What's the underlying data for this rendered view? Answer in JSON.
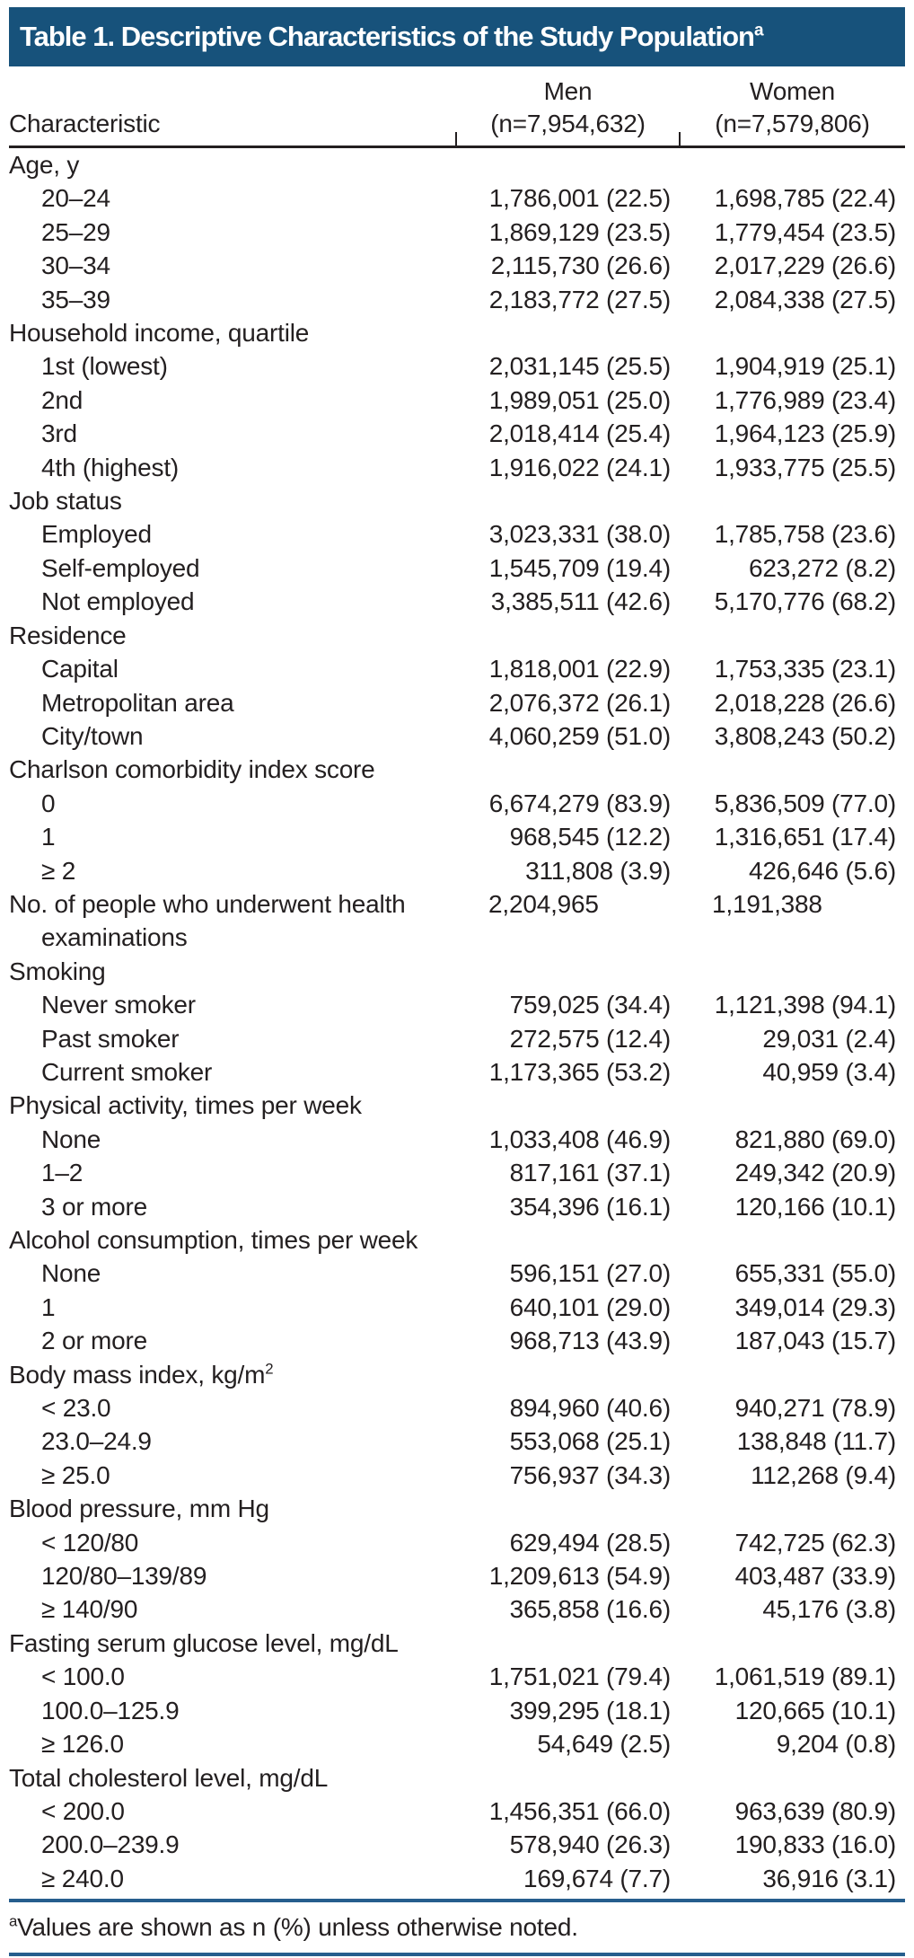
{
  "title": {
    "text": "Table 1. Descriptive Characteristics of the Study Population",
    "sup": "a"
  },
  "header": {
    "characteristic": "Characteristic",
    "men_label": "Men",
    "men_n": "(n=7,954,632)",
    "women_label": "Women",
    "women_n": "(n=7,579,806)"
  },
  "rows": [
    {
      "type": "section",
      "label": "Age, y",
      "men": "",
      "women": ""
    },
    {
      "type": "item",
      "label": "20–24",
      "men": "1,786,001 (22.5)",
      "women": "1,698,785 (22.4)"
    },
    {
      "type": "item",
      "label": "25–29",
      "men": "1,869,129 (23.5)",
      "women": "1,779,454 (23.5)"
    },
    {
      "type": "item",
      "label": "30–34",
      "men": "2,115,730 (26.6)",
      "women": "2,017,229 (26.6)"
    },
    {
      "type": "item",
      "label": "35–39",
      "men": "2,183,772 (27.5)",
      "women": "2,084,338 (27.5)"
    },
    {
      "type": "section",
      "label": "Household income, quartile",
      "men": "",
      "women": ""
    },
    {
      "type": "item",
      "label": "1st (lowest)",
      "men": "2,031,145 (25.5)",
      "women": "1,904,919 (25.1)"
    },
    {
      "type": "item",
      "label": "2nd",
      "men": "1,989,051 (25.0)",
      "women": "1,776,989 (23.4)"
    },
    {
      "type": "item",
      "label": "3rd",
      "men": "2,018,414 (25.4)",
      "women": "1,964,123 (25.9)"
    },
    {
      "type": "item",
      "label": "4th (highest)",
      "men": "1,916,022 (24.1)",
      "women": "1,933,775 (25.5)"
    },
    {
      "type": "section",
      "label": "Job status",
      "men": "",
      "women": ""
    },
    {
      "type": "item",
      "label": "Employed",
      "men": "3,023,331 (38.0)",
      "women": "1,785,758 (23.6)"
    },
    {
      "type": "item",
      "label": "Self-employed",
      "men": "1,545,709 (19.4)",
      "women": "623,272 (8.2)"
    },
    {
      "type": "item",
      "label": "Not employed",
      "men": "3,385,511 (42.6)",
      "women": "5,170,776 (68.2)"
    },
    {
      "type": "section",
      "label": "Residence",
      "men": "",
      "women": ""
    },
    {
      "type": "item",
      "label": "Capital",
      "men": "1,818,001 (22.9)",
      "women": "1,753,335 (23.1)"
    },
    {
      "type": "item",
      "label": "Metropolitan area",
      "men": "2,076,372 (26.1)",
      "women": "2,018,228 (26.6)"
    },
    {
      "type": "item",
      "label": "City/town",
      "men": "4,060,259 (51.0)",
      "women": "3,808,243 (50.2)"
    },
    {
      "type": "section",
      "label": "Charlson comorbidity index score",
      "men": "",
      "women": ""
    },
    {
      "type": "item",
      "label": "0",
      "men": "6,674,279 (83.9)",
      "women": "5,836,509 (77.0)"
    },
    {
      "type": "item",
      "label": "1",
      "men": "968,545 (12.2)",
      "women": "1,316,651 (17.4)"
    },
    {
      "type": "item",
      "label": "≥ 2",
      "men": "311,808 (3.9)",
      "women": "426,646 (5.6)"
    },
    {
      "type": "section",
      "label": [
        "No. of people who underwent health",
        "examinations"
      ],
      "men": "2,204,965",
      "women": "1,191,388",
      "value_align": "left"
    },
    {
      "type": "section",
      "label": "Smoking",
      "men": "",
      "women": ""
    },
    {
      "type": "item",
      "label": "Never smoker",
      "men": "759,025 (34.4)",
      "women": "1,121,398 (94.1)"
    },
    {
      "type": "item",
      "label": "Past smoker",
      "men": "272,575 (12.4)",
      "women": "29,031 (2.4)"
    },
    {
      "type": "item",
      "label": "Current smoker",
      "men": "1,173,365 (53.2)",
      "women": "40,959 (3.4)"
    },
    {
      "type": "section",
      "label": "Physical activity, times per week",
      "men": "",
      "women": ""
    },
    {
      "type": "item",
      "label": "None",
      "men": "1,033,408 (46.9)",
      "women": "821,880 (69.0)"
    },
    {
      "type": "item",
      "label": "1–2",
      "men": "817,161 (37.1)",
      "women": "249,342 (20.9)"
    },
    {
      "type": "item",
      "label": "3 or more",
      "men": "354,396 (16.1)",
      "women": "120,166 (10.1)"
    },
    {
      "type": "section",
      "label": "Alcohol consumption, times per week",
      "men": "",
      "women": ""
    },
    {
      "type": "item",
      "label": "None",
      "men": "596,151 (27.0)",
      "women": "655,331 (55.0)"
    },
    {
      "type": "item",
      "label": "1",
      "men": "640,101 (29.0)",
      "women": "349,014 (29.3)"
    },
    {
      "type": "item",
      "label": "2 or more",
      "men": "968,713 (43.9)",
      "women": "187,043 (15.7)"
    },
    {
      "type": "section",
      "label": "Body mass index, kg/m",
      "sup": "2",
      "men": "",
      "women": ""
    },
    {
      "type": "item",
      "label": "< 23.0",
      "men": "894,960 (40.6)",
      "women": "940,271 (78.9)"
    },
    {
      "type": "item",
      "label": "23.0–24.9",
      "men": "553,068 (25.1)",
      "women": "138,848 (11.7)"
    },
    {
      "type": "item",
      "label": "≥ 25.0",
      "men": "756,937 (34.3)",
      "women": "112,268 (9.4)"
    },
    {
      "type": "section",
      "label": "Blood pressure, mm Hg",
      "men": "",
      "women": ""
    },
    {
      "type": "item",
      "label": "< 120/80",
      "men": "629,494 (28.5)",
      "women": "742,725 (62.3)"
    },
    {
      "type": "item",
      "label": "120/80–139/89",
      "men": "1,209,613 (54.9)",
      "women": "403,487 (33.9)"
    },
    {
      "type": "item",
      "label": "≥ 140/90",
      "men": "365,858 (16.6)",
      "women": "45,176 (3.8)"
    },
    {
      "type": "section",
      "label": "Fasting serum glucose level, mg/dL",
      "men": "",
      "women": ""
    },
    {
      "type": "item",
      "label": "< 100.0",
      "men": "1,751,021 (79.4)",
      "women": "1,061,519 (89.1)"
    },
    {
      "type": "item",
      "label": "100.0–125.9",
      "men": "399,295 (18.1)",
      "women": "120,665 (10.1)"
    },
    {
      "type": "item",
      "label": "≥ 126.0",
      "men": "54,649 (2.5)",
      "women": "9,204 (0.8)"
    },
    {
      "type": "section",
      "label": "Total cholesterol level, mg/dL",
      "men": "",
      "women": ""
    },
    {
      "type": "item",
      "label": "< 200.0",
      "men": "1,456,351 (66.0)",
      "women": "963,639 (80.9)"
    },
    {
      "type": "item",
      "label": "200.0–239.9",
      "men": "578,940 (26.3)",
      "women": "190,833 (16.0)"
    },
    {
      "type": "item",
      "label": "≥ 240.0",
      "men": "169,674 (7.7)",
      "women": "36,916 (3.1)"
    }
  ],
  "footnote": {
    "sup": "a",
    "text": "Values are shown as n (%) unless otherwise noted."
  },
  "colors": {
    "title_bar_bg": "#17527b",
    "title_text": "#ffffff",
    "header_rule": "#231f20",
    "footnote_rule": "#265e8d",
    "body_text": "#231f20"
  }
}
